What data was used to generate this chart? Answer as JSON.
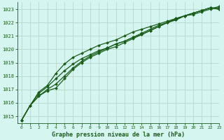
{
  "title": "Graphe pression niveau de la mer (hPa)",
  "bg_color": "#d5f5f0",
  "grid_color": "#b8d8cc",
  "line_color": "#1a5c1a",
  "marker_color": "#1a5c1a",
  "xlim": [
    -0.5,
    23
  ],
  "ylim": [
    1014.5,
    1023.5
  ],
  "yticks": [
    1015,
    1016,
    1017,
    1018,
    1019,
    1020,
    1021,
    1022,
    1023
  ],
  "xticks": [
    0,
    1,
    2,
    3,
    4,
    5,
    6,
    7,
    8,
    9,
    10,
    11,
    12,
    13,
    14,
    15,
    16,
    17,
    18,
    19,
    20,
    21,
    22,
    23
  ],
  "series": [
    [
      1014.7,
      1015.8,
      1016.5,
      1016.9,
      1017.1,
      1017.8,
      1018.5,
      1019.0,
      1019.4,
      1019.7,
      1020.0,
      1020.2,
      1020.5,
      1020.8,
      1021.1,
      1021.4,
      1021.7,
      1022.0,
      1022.2,
      1022.5,
      1022.7,
      1022.9,
      1023.1,
      1023.0
    ],
    [
      1014.7,
      1015.8,
      1016.5,
      1017.0,
      1017.4,
      1018.0,
      1018.6,
      1019.1,
      1019.5,
      1019.8,
      1020.1,
      1020.4,
      1020.6,
      1020.9,
      1021.1,
      1021.4,
      1021.7,
      1022.0,
      1022.2,
      1022.5,
      1022.7,
      1022.9,
      1023.1,
      1023.0
    ],
    [
      1014.7,
      1015.8,
      1016.7,
      1017.2,
      1017.8,
      1018.4,
      1018.9,
      1019.3,
      1019.6,
      1019.9,
      1020.1,
      1020.4,
      1020.6,
      1020.9,
      1021.2,
      1021.5,
      1021.8,
      1022.0,
      1022.3,
      1022.5,
      1022.7,
      1022.9,
      1023.1,
      1023.1
    ],
    [
      1014.7,
      1015.8,
      1016.8,
      1017.3,
      1018.2,
      1018.9,
      1019.4,
      1019.7,
      1020.0,
      1020.3,
      1020.5,
      1020.7,
      1021.0,
      1021.3,
      1021.5,
      1021.7,
      1021.9,
      1022.1,
      1022.3,
      1022.5,
      1022.6,
      1022.8,
      1023.0,
      1023.2
    ]
  ]
}
